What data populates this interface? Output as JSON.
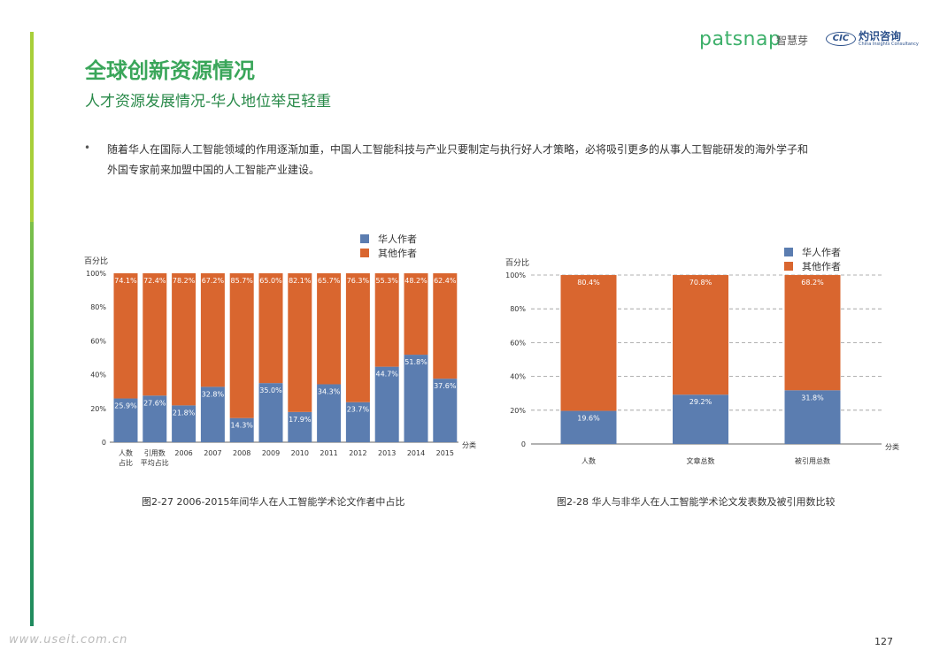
{
  "header": {
    "logo_text": "patsnap",
    "logo_cn": "智慧芽",
    "cic_text": "CIC",
    "cic_cn": "灼识咨询",
    "cic_en": "China Insights Consultancy"
  },
  "title": "全球创新资源情况",
  "subtitle": "人才资源发展情况-华人地位举足轻重",
  "bullet_text": "随着华人在国际人工智能领域的作用逐渐加重，中国人工智能科技与产业只要制定与执行好人才策略，必将吸引更多的从事人工智能研发的海外学子和外国专家前来加盟中国的人工智能产业建设。",
  "colors": {
    "chinese": "#5b7db0",
    "others": "#d9662f",
    "accent": "#3aa65a"
  },
  "chart_data": [
    {
      "type": "bar",
      "stacked": true,
      "ylabel": "百分比",
      "xlabel": "分类",
      "ylim": [
        0,
        100
      ],
      "yticks": [
        "0",
        "20%",
        "40%",
        "60%",
        "80%",
        "100%"
      ],
      "categories": [
        "人数占比",
        "引用数平均占比",
        "2006",
        "2007",
        "2008",
        "2009",
        "2010",
        "2011",
        "2012",
        "2013",
        "2014",
        "2015"
      ],
      "category_lines": [
        [
          "人数",
          "占比"
        ],
        [
          "引用数",
          "平均占比"
        ],
        [
          "2006"
        ],
        [
          "2007"
        ],
        [
          "2008"
        ],
        [
          "2009"
        ],
        [
          "2010"
        ],
        [
          "2011"
        ],
        [
          "2012"
        ],
        [
          "2013"
        ],
        [
          "2014"
        ],
        [
          "2015"
        ]
      ],
      "series": [
        {
          "name": "华人作者",
          "values": [
            25.9,
            27.6,
            21.8,
            32.8,
            14.3,
            35.0,
            17.9,
            34.3,
            23.7,
            44.7,
            51.8,
            37.6
          ],
          "labels": [
            "25.9%",
            "27.6%",
            "21.8%",
            "32.8%",
            "14.3%",
            "35.0%",
            "17.9%",
            "34.3%",
            "23.7%",
            "44.7%",
            "51.8%",
            "37.6%"
          ]
        },
        {
          "name": "其他作者",
          "values": [
            74.1,
            72.4,
            78.2,
            67.2,
            85.7,
            65.0,
            82.1,
            65.7,
            76.3,
            55.3,
            48.2,
            62.4
          ],
          "labels": [
            "74.1%",
            "72.4%",
            "78.2%",
            "67.2%",
            "85.7%",
            "65.0%",
            "82.1%",
            "65.7%",
            "76.3%",
            "55.3%",
            "48.2%",
            "62.4%"
          ]
        }
      ],
      "legend": "top",
      "caption": "图2-27  2006-2015年间华人在人工智能学术论文作者中占比"
    },
    {
      "type": "bar",
      "stacked": true,
      "ylabel": "百分比",
      "xlabel": "分类",
      "ylim": [
        0,
        100
      ],
      "yticks": [
        "0",
        "20%",
        "40%",
        "60%",
        "80%",
        "100%"
      ],
      "grid": true,
      "categories": [
        "人数",
        "文章总数",
        "被引用总数"
      ],
      "category_lines": [
        [
          "人数"
        ],
        [
          "文章总数"
        ],
        [
          "被引用总数"
        ]
      ],
      "series": [
        {
          "name": "华人作者",
          "values": [
            19.6,
            29.2,
            31.8
          ],
          "labels": [
            "19.6%",
            "29.2%",
            "31.8%"
          ]
        },
        {
          "name": "其他作者",
          "values": [
            80.4,
            70.8,
            68.2
          ],
          "labels": [
            "80.4%",
            "70.8%",
            "68.2%"
          ]
        }
      ],
      "legend": "top-right",
      "caption": "图2-28 华人与非华人在人工智能学术论文发表数及被引用数比较"
    }
  ],
  "watermark": "www.useit.com.cn",
  "page_number": "127"
}
